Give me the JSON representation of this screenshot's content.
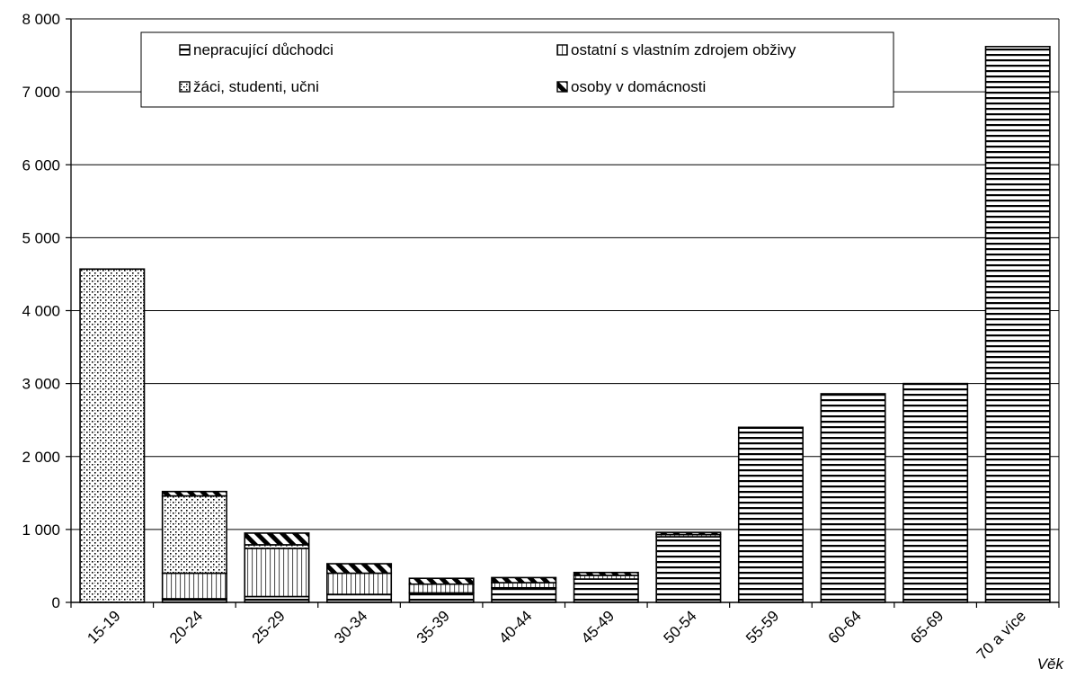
{
  "chart_data": {
    "type": "bar",
    "stacked": true,
    "xlabel": "Věk",
    "ylabel": "",
    "ylim": [
      0,
      8000
    ],
    "yticks": [
      0,
      1000,
      2000,
      3000,
      4000,
      5000,
      6000,
      7000,
      8000
    ],
    "ytick_labels": [
      "0",
      "1 000",
      "2 000",
      "3 000",
      "4 000",
      "5 000",
      "6 000",
      "7 000",
      "8 000"
    ],
    "grid": true,
    "legend_position": "top",
    "categories": [
      "15-19",
      "20-24",
      "25-29",
      "30-34",
      "35-39",
      "40-44",
      "45-49",
      "50-54",
      "55-59",
      "60-64",
      "65-69",
      "70 a více"
    ],
    "series": [
      {
        "name": "nepracující důchodci",
        "pattern": "horizontal-lines",
        "values": [
          0,
          50,
          80,
          110,
          130,
          200,
          320,
          900,
          2390,
          2860,
          3000,
          7620
        ]
      },
      {
        "name": "ostatní s vlastním zdrojem obživy",
        "pattern": "vertical-lines",
        "values": [
          0,
          350,
          660,
          290,
          120,
          70,
          50,
          30,
          0,
          0,
          0,
          0
        ]
      },
      {
        "name": "žáci, studenti, učni",
        "pattern": "dots",
        "values": [
          4570,
          1060,
          50,
          0,
          0,
          0,
          0,
          0,
          0,
          0,
          0,
          0
        ]
      },
      {
        "name": "osoby v domácnosti",
        "pattern": "diagonal-lines",
        "values": [
          0,
          60,
          160,
          130,
          80,
          70,
          40,
          30,
          10,
          0,
          0,
          0
        ]
      }
    ]
  }
}
